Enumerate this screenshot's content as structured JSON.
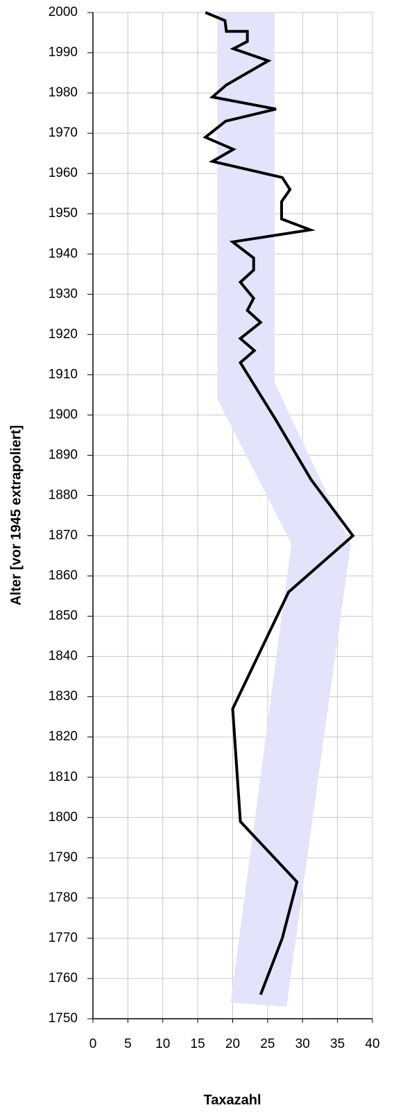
{
  "chart_data": {
    "type": "line",
    "orientation": "vertical",
    "xlabel": "Taxazahl",
    "ylabel": "Alter [vor 1945 extrapoliert]",
    "xlim": [
      0,
      40
    ],
    "xticks": [
      0,
      5,
      10,
      15,
      20,
      25,
      30,
      35,
      40
    ],
    "ylim": [
      1750,
      2000
    ],
    "yticks": [
      1750,
      1760,
      1770,
      1780,
      1790,
      1800,
      1810,
      1820,
      1830,
      1840,
      1850,
      1860,
      1870,
      1880,
      1890,
      1900,
      1910,
      1920,
      1930,
      1940,
      1950,
      1960,
      1970,
      1980,
      1990,
      2000
    ],
    "grid": true,
    "band": {
      "color": "#e3e3fb",
      "x": [
        17.8,
        17.8,
        28.4,
        19.7,
        27.7,
        36.9,
        26.0,
        26.0
      ],
      "y": [
        2000,
        1904,
        1868,
        1754,
        1753,
        1868,
        1908,
        2000
      ]
    },
    "series": [
      {
        "color": "#000000",
        "y": [
          2000,
          1998,
          1995.3,
          1995.3,
          1992.8,
          1991,
          1988,
          1982,
          1979,
          1976,
          1973,
          1969,
          1966,
          1963,
          1959,
          1956,
          1953,
          1948.7,
          1946,
          1943,
          1939,
          1936,
          1933,
          1929,
          1926,
          1923,
          1919,
          1916,
          1913,
          1899,
          1884,
          1870,
          1856,
          1827,
          1799,
          1784,
          1770,
          1756
        ],
        "values": [
          16.1,
          18.9,
          19.1,
          22.1,
          22.1,
          20.1,
          25.1,
          19.1,
          17.1,
          26.2,
          19.0,
          16.1,
          20.1,
          17.1,
          27.1,
          28.2,
          27.0,
          27.0,
          31.1,
          20.0,
          23.0,
          23.0,
          21.1,
          23.0,
          22.1,
          24.0,
          21.1,
          23.1,
          21.1,
          26.1,
          31.2,
          37.2,
          28.0,
          20.0,
          21.1,
          29.2,
          27.1,
          24.0
        ]
      }
    ]
  }
}
